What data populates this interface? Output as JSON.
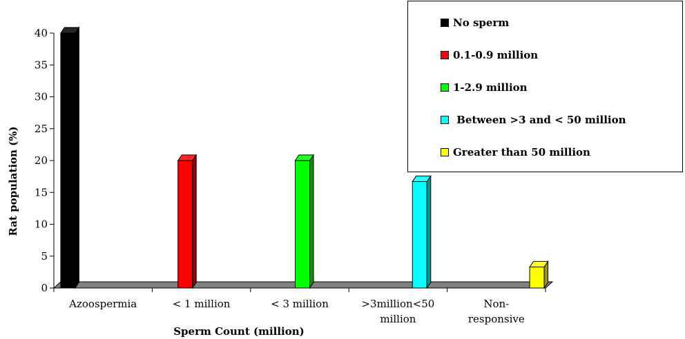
{
  "chart_data": {
    "type": "bar",
    "title": "",
    "xlabel": "Sperm Count (million)",
    "ylabel": "Rat population (%)",
    "ylim": [
      0,
      40
    ],
    "yticks": [
      0,
      5,
      10,
      15,
      20,
      25,
      30,
      35,
      40
    ],
    "categories": [
      [
        "Azoospermia"
      ],
      [
        "< 1 million"
      ],
      [
        "< 3 million"
      ],
      [
        ">3million<50",
        "million"
      ],
      [
        "Non-",
        "responsive"
      ]
    ],
    "series": [
      {
        "name": "No sperm",
        "color": "#000000",
        "values": [
          40,
          0,
          0,
          0,
          0
        ]
      },
      {
        "name": "0.1-0.9 million",
        "color": "#ff0000",
        "values": [
          0,
          20,
          0,
          0,
          0
        ]
      },
      {
        "name": "1-2.9 million",
        "color": "#00ff00",
        "values": [
          0,
          0,
          20,
          0,
          0
        ]
      },
      {
        "name": " Between >3 and < 50 million",
        "color": "#00ffff",
        "values": [
          0,
          0,
          0,
          16.7,
          0
        ]
      },
      {
        "name": "Greater than 50 million",
        "color": "#ffff00",
        "values": [
          0,
          0,
          0,
          0,
          3.3
        ]
      }
    ],
    "grid": false,
    "legend_position": "top-right",
    "style": "3d-columns"
  }
}
